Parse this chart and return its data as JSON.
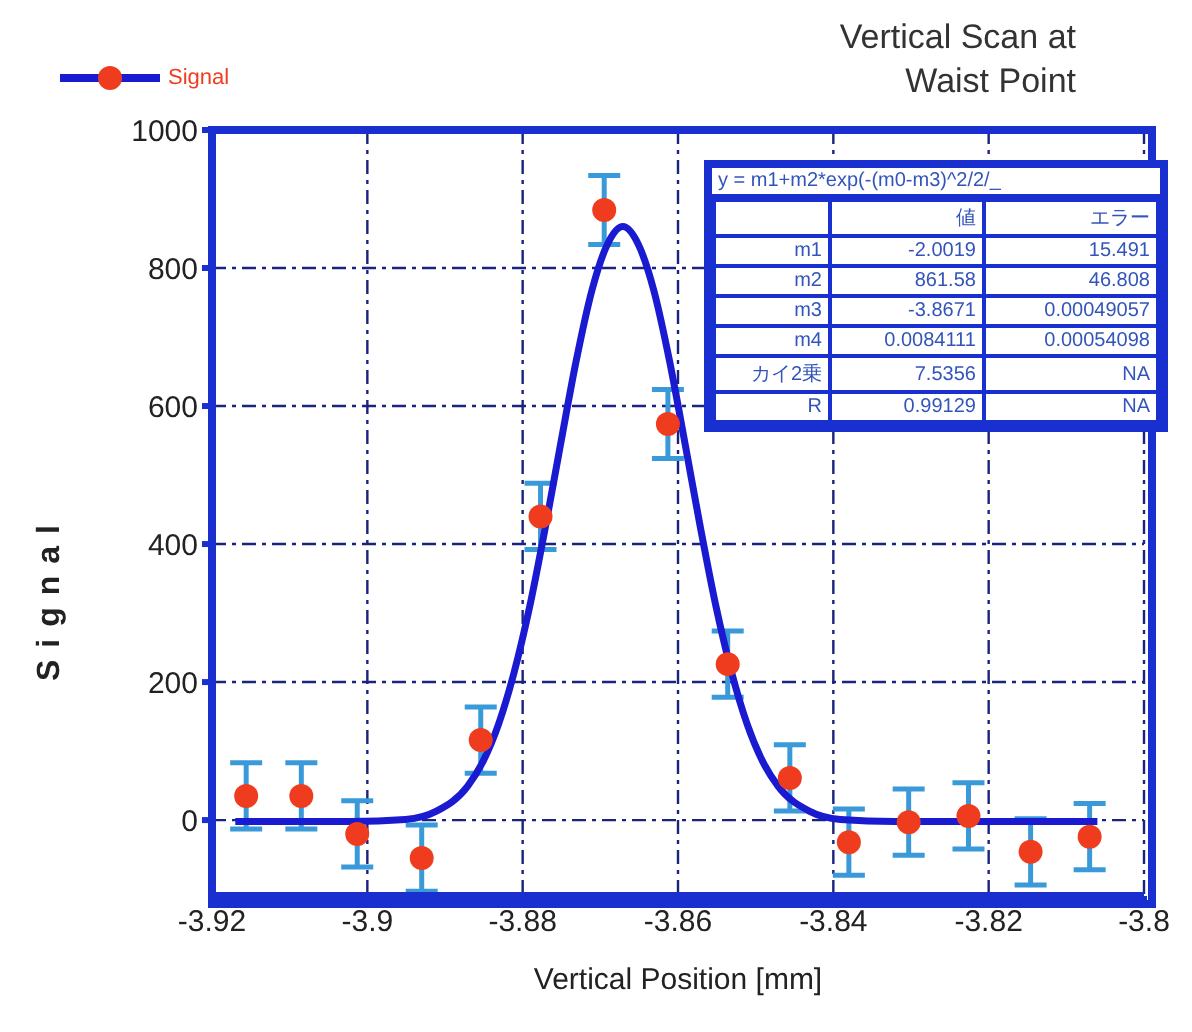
{
  "chart_data": {
    "type": "scatter",
    "title": "Vertical Scan at Waist Point",
    "xlabel": "Vertical Position  [mm]",
    "ylabel": "Signal",
    "xlim": [
      -3.92,
      -3.8
    ],
    "xticks": [
      -3.92,
      -3.9,
      -3.88,
      -3.86,
      -3.84,
      -3.82,
      -3.8
    ],
    "ylim": [
      -110,
      1000
    ],
    "yticks": [
      0,
      200,
      400,
      600,
      800,
      1000
    ],
    "grid": true,
    "legend": "top left",
    "annotations": [
      "y = m1+m2*exp(-(m0-m3)^2/2/_",
      "値",
      "エラー",
      "m1",
      "-2.0019",
      "15.491",
      "m2",
      "861.58",
      "46.808",
      "m3",
      "-3.8671",
      "0.00049057",
      "m4",
      "0.0084111",
      "0.00054098",
      "カイ2乗",
      "7.5356",
      "NA",
      "R",
      "0.99129",
      "NA"
    ],
    "series": [
      {
        "name": "Signal",
        "marker": "circle",
        "color": "#f03c1e",
        "x": [
          -3.9156,
          -3.9085,
          -3.9013,
          -3.893,
          -3.8854,
          -3.8777,
          -3.8695,
          -3.8613,
          -3.8536,
          -3.8456,
          -3.838,
          -3.8303,
          -3.8226,
          -3.8146,
          -3.807
        ],
        "values": [
          35,
          35,
          -20,
          -55,
          116,
          440,
          884,
          574,
          226,
          61,
          -32,
          -3,
          6,
          -46,
          -24
        ],
        "errors": [
          48,
          48,
          48,
          48,
          48,
          48,
          50,
          50,
          48,
          48,
          48,
          48,
          48,
          48,
          48
        ]
      },
      {
        "type": "line",
        "marker": "none",
        "color": "#1a1ad0",
        "line_style": "solid",
        "x": [
          -3.917,
          -3.9021,
          -3.8951,
          -3.8911,
          -3.8871,
          -3.8851,
          -3.8831,
          -3.8811,
          -3.8791,
          -3.8771,
          -3.8751,
          -3.8731,
          -3.8711,
          -3.8691,
          -3.8671,
          -3.8651,
          -3.8631,
          -3.8611,
          -3.8591,
          -3.8571,
          -3.8551,
          -3.8531,
          -3.8511,
          -3.8491,
          -3.8471,
          -3.8431,
          -3.8391,
          -3.8321,
          -3.806
        ],
        "values": [
          -2,
          -2,
          1,
          13,
          49,
          85,
          139,
          214,
          309,
          423,
          546,
          666,
          767,
          834,
          860,
          834,
          767,
          666,
          546,
          423,
          309,
          214,
          139,
          85,
          49,
          13,
          1,
          -2,
          -2
        ]
      }
    ]
  }
}
